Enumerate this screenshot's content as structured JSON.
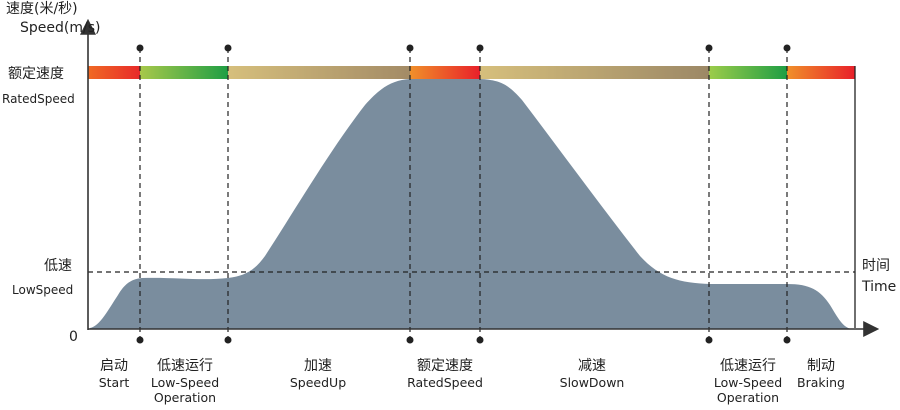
{
  "axis": {
    "y_title_cn": "速度(米/秒)",
    "y_title_en": "Speed(m/s)",
    "x_title_cn": "时间",
    "x_title_en": "Time",
    "origin": "0"
  },
  "levels": {
    "rated_cn": "额定速度",
    "rated_en": "RatedSpeed",
    "low_cn": "低速",
    "low_en": "LowSpeed"
  },
  "phases": [
    {
      "cn": "启动",
      "en": "Start",
      "en2": ""
    },
    {
      "cn": "低速运行",
      "en": "Low-Speed",
      "en2": "Operation"
    },
    {
      "cn": "加速",
      "en": "SpeedUp",
      "en2": ""
    },
    {
      "cn": "额定速度",
      "en": "RatedSpeed",
      "en2": ""
    },
    {
      "cn": "减速",
      "en": "SlowDown",
      "en2": ""
    },
    {
      "cn": "低速运行",
      "en": "Low-Speed",
      "en2": "Operation"
    },
    {
      "cn": "制动",
      "en": "Braking",
      "en2": ""
    }
  ],
  "colors": {
    "curve_fill": "#7a8d9e",
    "red": "#e8202a",
    "orange": "#f08a24",
    "green": "#2aa54a",
    "lime": "#a8c84a",
    "tan": "#cdb574",
    "brown": "#a08a66"
  }
}
